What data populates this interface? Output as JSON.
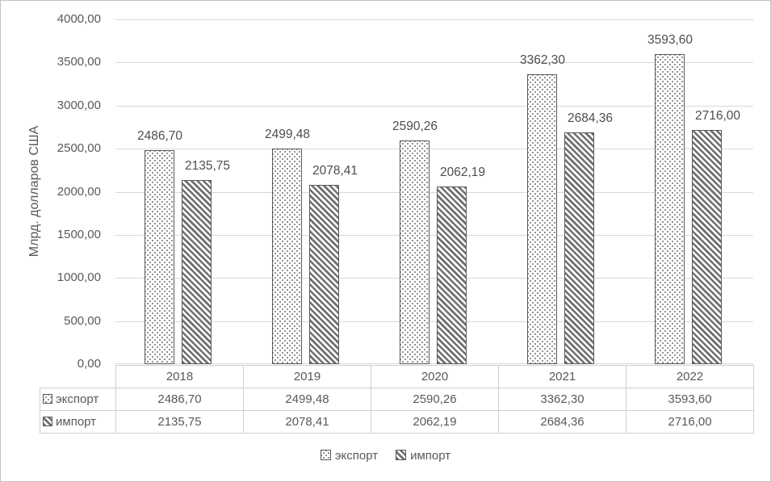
{
  "colors": {
    "text": "#595959",
    "label_text": "#4d4d4d",
    "gridline": "#d9d9d9",
    "bar_border": "#595959",
    "pattern_dark": "#6f6f6f",
    "table_border": "#cfcfcf",
    "chart_border": "#c3c3c3"
  },
  "y_axis": {
    "title": "Млрд. долларов США",
    "tick_labels": [
      "0,00",
      "500,00",
      "1000,00",
      "1500,00",
      "2000,00",
      "2500,00",
      "3000,00",
      "3500,00",
      "4000,00"
    ],
    "min": 0,
    "max": 4000,
    "step": 500
  },
  "chart_data": {
    "type": "bar",
    "title": "",
    "categories": [
      "2018",
      "2019",
      "2020",
      "2021",
      "2022"
    ],
    "series": [
      {
        "id": "export",
        "name": "экспорт",
        "pattern": "dotted",
        "values": [
          2486.7,
          2499.48,
          2590.26,
          3362.3,
          3593.6
        ],
        "labels": [
          "2486,70",
          "2499,48",
          "2590,26",
          "3362,30",
          "3593,60"
        ]
      },
      {
        "id": "import",
        "name": "импорт",
        "pattern": "diagonal",
        "values": [
          2135.75,
          2078.41,
          2062.19,
          2684.36,
          2716.0
        ],
        "labels": [
          "2135,75",
          "2078,41",
          "2062,19",
          "2684,36",
          "2716,00"
        ]
      }
    ],
    "ylabel": "Млрд. долларов США",
    "ylim": [
      0,
      4000
    ],
    "grid": true,
    "legend_position": "bottom",
    "data_table_shown": true
  },
  "table": {
    "columns": [
      "2018",
      "2019",
      "2020",
      "2021",
      "2022"
    ],
    "rows": [
      {
        "id": "export",
        "header": "экспорт",
        "pattern": "dotted",
        "cells": [
          "2486,70",
          "2499,48",
          "2590,26",
          "3362,30",
          "3593,60"
        ]
      },
      {
        "id": "import",
        "header": "импорт",
        "pattern": "diagonal",
        "cells": [
          "2135,75",
          "2078,41",
          "2062,19",
          "2684,36",
          "2716,00"
        ]
      }
    ]
  }
}
